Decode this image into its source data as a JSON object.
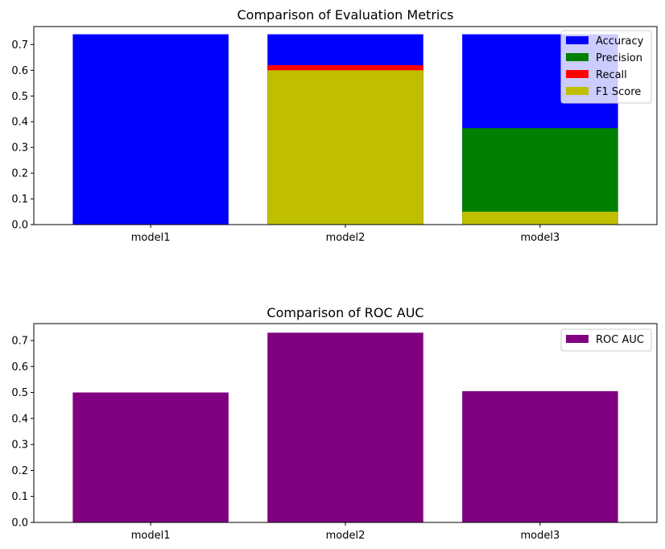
{
  "chart_data": [
    {
      "type": "bar",
      "title": "Comparison of Evaluation Metrics",
      "categories": [
        "model1",
        "model2",
        "model3"
      ],
      "ylim": [
        0,
        0.77
      ],
      "yticks": [
        "0.0",
        "0.1",
        "0.2",
        "0.3",
        "0.4",
        "0.5",
        "0.6",
        "0.7"
      ],
      "legend": {
        "placement": "top-right",
        "entries": [
          "Accuracy",
          "Precision",
          "Recall",
          "F1 Score"
        ]
      },
      "overlaid": true,
      "series": [
        {
          "name": "Accuracy",
          "color": "#0000ff",
          "values": [
            0.74,
            0.74,
            0.74
          ]
        },
        {
          "name": "Precision",
          "color": "#008000",
          "values": [
            0.0,
            0.0,
            0.375
          ]
        },
        {
          "name": "Recall",
          "color": "#ff0000",
          "values": [
            0.0,
            0.62,
            0.0
          ]
        },
        {
          "name": "F1 Score",
          "color": "#bfbf00",
          "values": [
            0.0,
            0.6,
            0.05
          ]
        }
      ]
    },
    {
      "type": "bar",
      "title": "Comparison of ROC AUC",
      "categories": [
        "model1",
        "model2",
        "model3"
      ],
      "ylim": [
        0,
        0.765
      ],
      "yticks": [
        "0.0",
        "0.1",
        "0.2",
        "0.3",
        "0.4",
        "0.5",
        "0.6",
        "0.7"
      ],
      "legend": {
        "placement": "top-right",
        "entries": [
          "ROC AUC"
        ]
      },
      "series": [
        {
          "name": "ROC AUC",
          "color": "#800080",
          "values": [
            0.5,
            0.73,
            0.505
          ]
        }
      ]
    }
  ]
}
